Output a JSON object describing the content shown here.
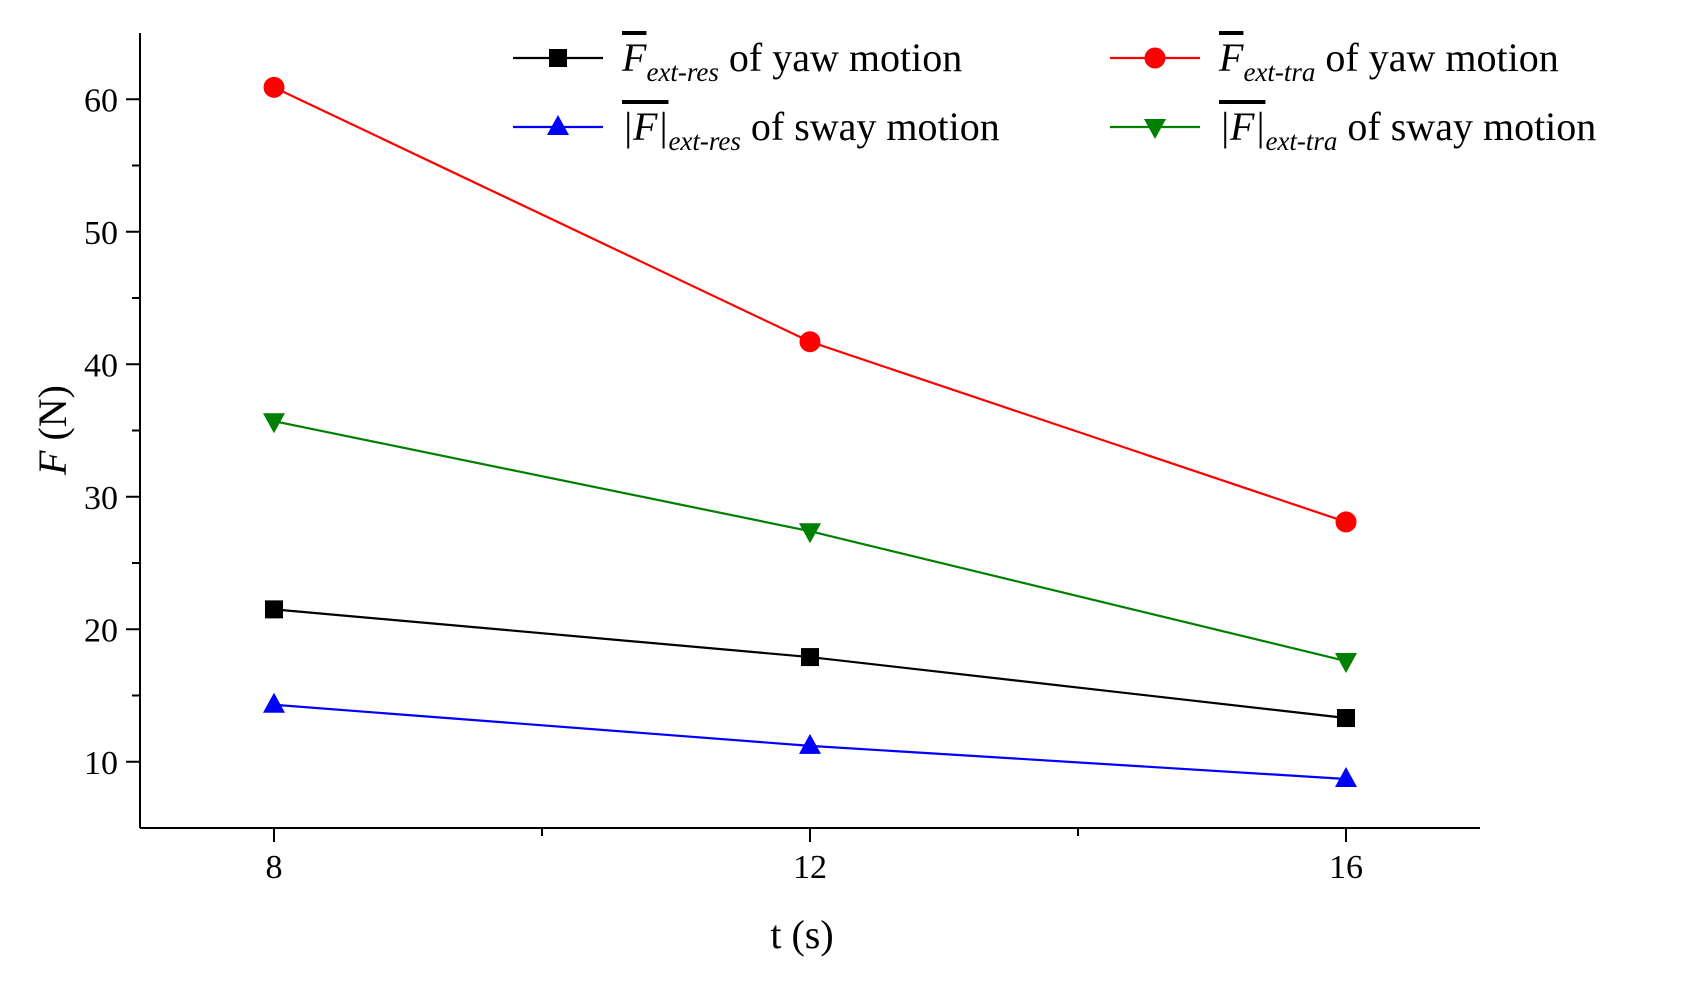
{
  "chart_data": {
    "type": "line",
    "xlabel": "t (s)",
    "ylabel": "F (N)",
    "ylabel_var": "F",
    "ylabel_unit": "(N)",
    "x": [
      8,
      12,
      16
    ],
    "xlim": [
      7,
      17
    ],
    "ylim": [
      5,
      65
    ],
    "xticks": [
      8,
      12,
      16
    ],
    "yticks": [
      10,
      20,
      30,
      40,
      50,
      60
    ],
    "grid": false,
    "legend_position": "top-right",
    "series": [
      {
        "key": "yaw_res",
        "symbol": "F",
        "overline": "bar",
        "subscript": "ext-res",
        "suffix": " of yaw motion",
        "color": "#000000",
        "marker": "square",
        "values": [
          21.5,
          17.9,
          13.3
        ]
      },
      {
        "key": "yaw_tra",
        "symbol": "F",
        "overline": "bar",
        "subscript": "ext-tra",
        "suffix": " of yaw motion",
        "color": "#ff0000",
        "marker": "circle",
        "values": [
          60.9,
          41.7,
          28.1
        ]
      },
      {
        "key": "sway_res",
        "symbol": "|F|",
        "overline": "bar",
        "subscript": "ext-res",
        "suffix": " of sway motion",
        "color": "#0000ff",
        "marker": "triangle-up",
        "values": [
          14.3,
          11.2,
          8.7
        ]
      },
      {
        "key": "sway_tra",
        "symbol": "|F|",
        "overline": "bar",
        "subscript": "ext-tra",
        "suffix": " of sway motion",
        "color": "#008000",
        "marker": "triangle-down",
        "values": [
          35.7,
          27.4,
          17.6
        ]
      }
    ]
  }
}
